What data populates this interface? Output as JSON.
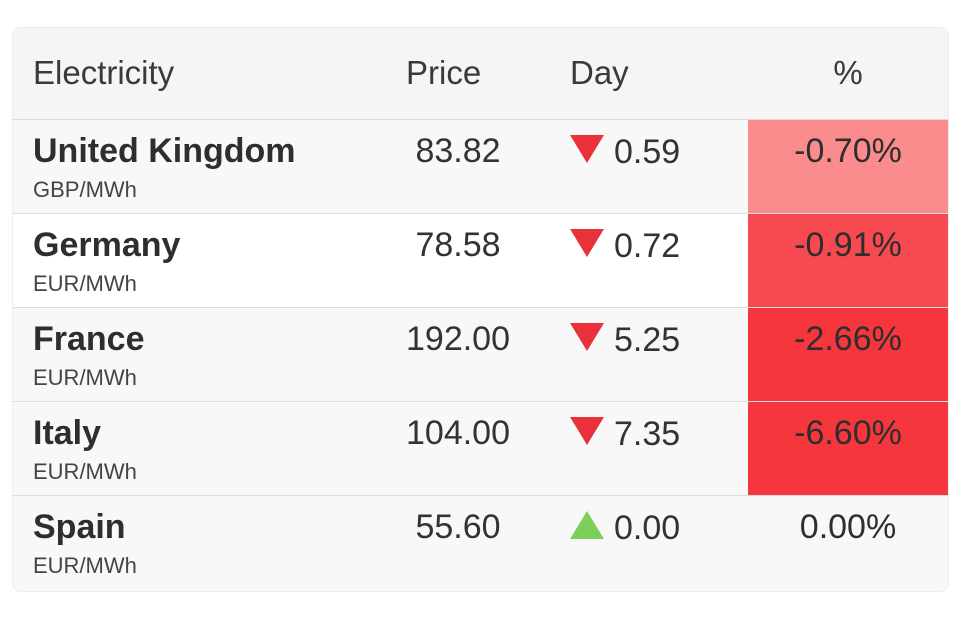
{
  "header": {
    "name": "Electricity",
    "price": "Price",
    "day": "Day",
    "pct": "%"
  },
  "rows": [
    {
      "country": "United Kingdom",
      "unit": "GBP/MWh",
      "price": "83.82",
      "direction": "down",
      "day": "0.59",
      "pct": "-0.70%",
      "pct_color": "#fa8c8e"
    },
    {
      "country": "Germany",
      "unit": "EUR/MWh",
      "price": "78.58",
      "direction": "down",
      "day": "0.72",
      "pct": "-0.91%",
      "pct_color": "#f64a50"
    },
    {
      "country": "France",
      "unit": "EUR/MWh",
      "price": "192.00",
      "direction": "down",
      "day": "5.25",
      "pct": "-2.66%",
      "pct_color": "#f5373d"
    },
    {
      "country": "Italy",
      "unit": "EUR/MWh",
      "price": "104.00",
      "direction": "down",
      "day": "7.35",
      "pct": "-6.60%",
      "pct_color": "#f5373d"
    },
    {
      "country": "Spain",
      "unit": "EUR/MWh",
      "price": "55.60",
      "direction": "up",
      "day": "0.00",
      "pct": "0.00%",
      "pct_color": ""
    }
  ],
  "colors": {
    "down_arrow": "#e8313a",
    "up_arrow": "#7ccf59"
  }
}
